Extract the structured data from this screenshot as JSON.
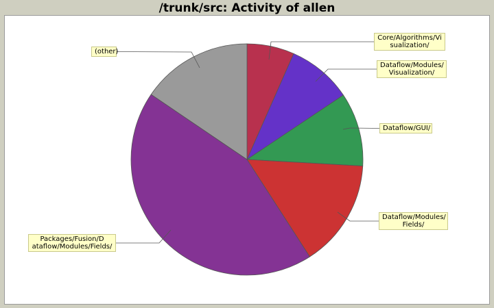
{
  "chart_data": {
    "type": "pie",
    "title": "/trunk/src: Activity of allen",
    "slices": [
      {
        "label": "Core/Algorithms/Visualization/",
        "value": 6.6,
        "color": "#b8314e"
      },
      {
        "label": "Dataflow/Modules/Visualization/",
        "value": 9.0,
        "color": "#6432c8"
      },
      {
        "label": "Dataflow/GUI/",
        "value": 10.3,
        "color": "#339953"
      },
      {
        "label": "Dataflow/Modules/Fields/",
        "value": 15.0,
        "color": "#cc3333"
      },
      {
        "label": "Packages/Fusion/Dataflow/Modules/Fields/",
        "value": 43.6,
        "color": "#843394"
      },
      {
        "label": "(other)",
        "value": 15.5,
        "color": "#9a9a9a"
      }
    ]
  }
}
